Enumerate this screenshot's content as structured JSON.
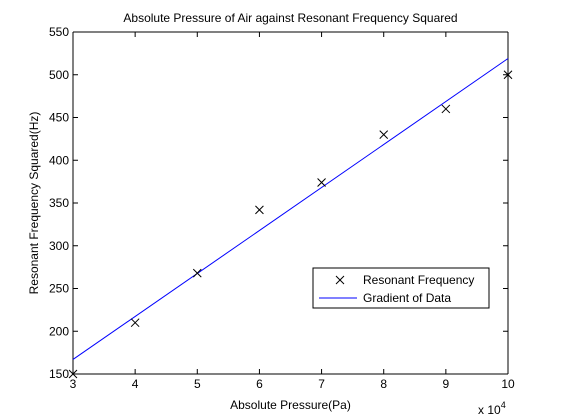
{
  "chart_data": {
    "type": "scatter",
    "title": "Absolute Pressure of Air against Resonant Frequency Squared",
    "xlabel": "Absolute Pressure(Pa)",
    "ylabel": "Resonant Frequency Squared(Hz)",
    "x_multiplier": "x 10",
    "x_multiplier_exp": "4",
    "xlim": [
      3,
      10
    ],
    "ylim": [
      150,
      550
    ],
    "xticks": [
      3,
      4,
      5,
      6,
      7,
      8,
      9,
      10
    ],
    "yticks": [
      150,
      200,
      250,
      300,
      350,
      400,
      450,
      500,
      550
    ],
    "series": [
      {
        "name": "Resonant Frequency",
        "kind": "marker",
        "marker": "x",
        "color": "#000000",
        "x": [
          3,
          4,
          5,
          6,
          7,
          8,
          9,
          10
        ],
        "y": [
          150,
          210,
          268,
          342,
          374,
          430,
          460,
          500
        ]
      },
      {
        "name": "Gradient of Data",
        "kind": "line",
        "color": "#0000ff",
        "x": [
          3,
          10
        ],
        "y": [
          167,
          519
        ]
      }
    ],
    "legend_position": "lower-right",
    "grid": false
  }
}
